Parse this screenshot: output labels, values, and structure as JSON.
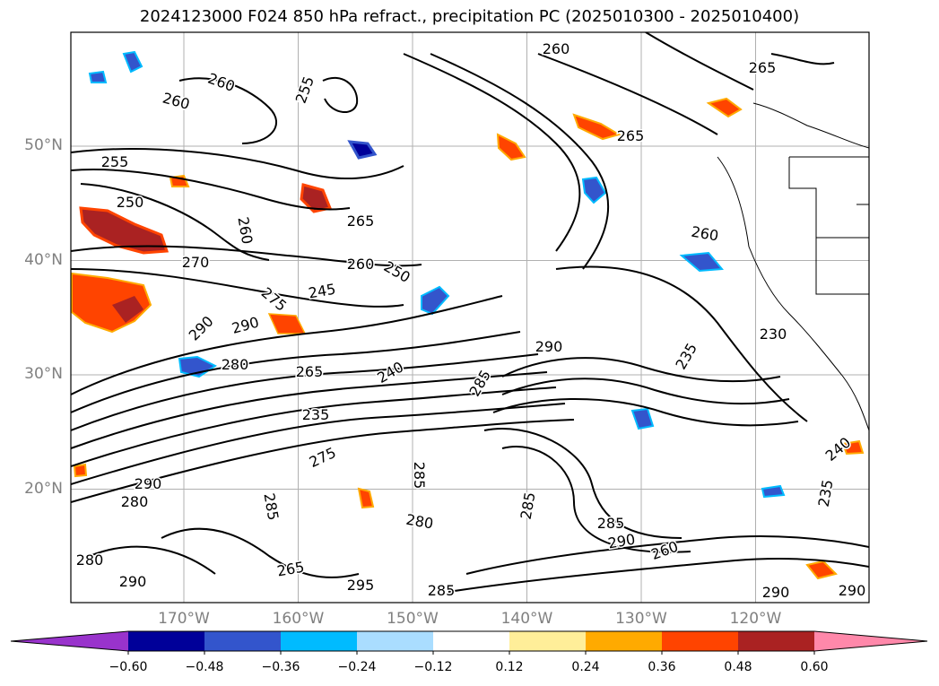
{
  "title": "2024123000 F024 850 hPa refract., precipitation PC (2025010300 - 2025010400)",
  "map": {
    "lat_labels": [
      {
        "text": "50°N",
        "lat": 50
      },
      {
        "text": "40°N",
        "lat": 40
      },
      {
        "text": "30°N",
        "lat": 30
      },
      {
        "text": "20°N",
        "lat": 20
      }
    ],
    "lon_labels": [
      {
        "text": "170°W",
        "lon": -170
      },
      {
        "text": "160°W",
        "lon": -160
      },
      {
        "text": "150°W",
        "lon": -150
      },
      {
        "text": "140°W",
        "lon": -140
      },
      {
        "text": "130°W",
        "lon": -130
      },
      {
        "text": "120°W",
        "lon": -120
      }
    ],
    "contour_labels": [
      {
        "text": "260"
      },
      {
        "text": "260"
      },
      {
        "text": "255"
      },
      {
        "text": "255"
      },
      {
        "text": "250"
      },
      {
        "text": "260"
      },
      {
        "text": "270"
      },
      {
        "text": "265"
      },
      {
        "text": "260"
      },
      {
        "text": "250"
      },
      {
        "text": "245"
      },
      {
        "text": "275"
      },
      {
        "text": "290"
      },
      {
        "text": "290"
      },
      {
        "text": "280"
      },
      {
        "text": "265"
      },
      {
        "text": "240"
      },
      {
        "text": "235"
      },
      {
        "text": "275"
      },
      {
        "text": "285"
      },
      {
        "text": "290"
      },
      {
        "text": "280"
      },
      {
        "text": "285"
      },
      {
        "text": "280"
      },
      {
        "text": "285"
      },
      {
        "text": "290"
      },
      {
        "text": "265"
      },
      {
        "text": "295"
      },
      {
        "text": "285"
      },
      {
        "text": "280"
      },
      {
        "text": "285"
      },
      {
        "text": "285"
      },
      {
        "text": "290"
      },
      {
        "text": "260"
      },
      {
        "text": "235"
      },
      {
        "text": "240"
      },
      {
        "text": "235"
      },
      {
        "text": "290"
      },
      {
        "text": "290"
      },
      {
        "text": "260"
      },
      {
        "text": "265"
      },
      {
        "text": "265"
      },
      {
        "text": "260"
      },
      {
        "text": "230"
      },
      {
        "text": "290"
      }
    ]
  },
  "colorbar": {
    "colors": [
      "#9933cc",
      "#000099",
      "#3355cc",
      "#00bbff",
      "#aaddff",
      "#ffffff",
      "#ffee99",
      "#ffaa00",
      "#ff4400",
      "#aa2222",
      "#ff88aa"
    ],
    "ticks": [
      "−0.60",
      "−0.48",
      "−0.36",
      "−0.24",
      "−0.12",
      "0.12",
      "0.24",
      "0.36",
      "0.48",
      "0.60"
    ]
  }
}
